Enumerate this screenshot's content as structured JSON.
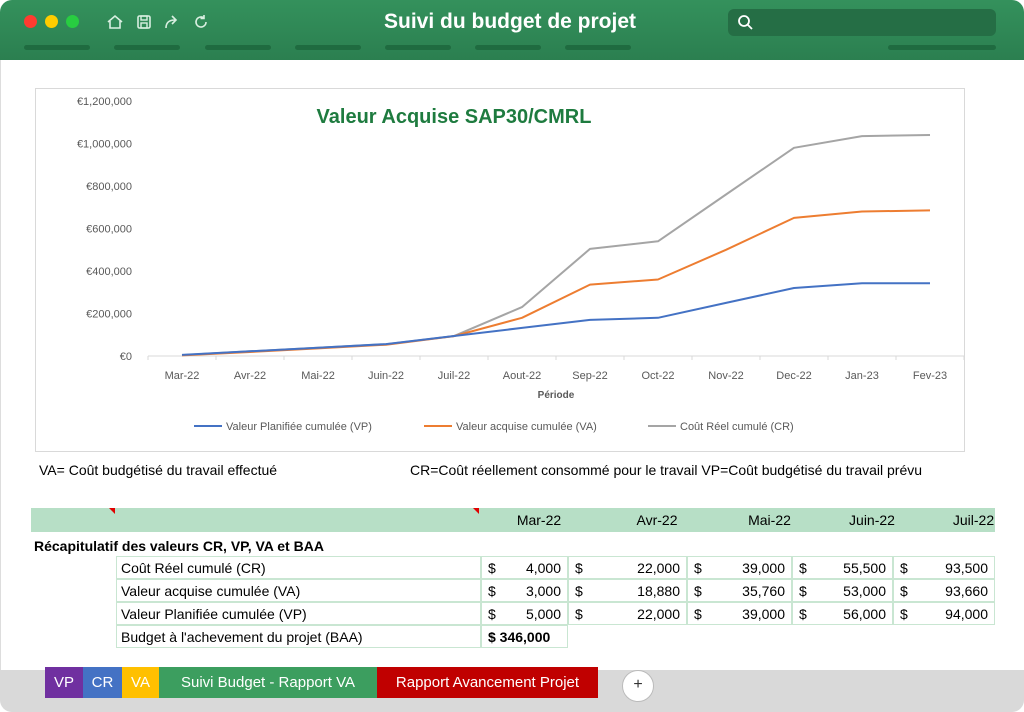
{
  "window": {
    "title": "Suivi du budget de projet",
    "search": {
      "placeholder": ""
    }
  },
  "chart_data": {
    "type": "line",
    "title": "Valeur Acquise SAP30/CMRL",
    "xlabel": "Période",
    "ylabel": "",
    "categories": [
      "Mar-22",
      "Avr-22",
      "Mai-22",
      "Juin-22",
      "Juil-22",
      "Aout-22",
      "Sep-22",
      "Oct-22",
      "Nov-22",
      "Dec-22",
      "Jan-23",
      "Fev-23"
    ],
    "y_ticks": [
      "€0",
      "€200,000",
      "€400,000",
      "€600,000",
      "€800,000",
      "€1,000,000",
      "€1,200,000"
    ],
    "ylim": [
      0,
      1200000
    ],
    "grid": false,
    "legend_position": "bottom",
    "series": [
      {
        "name": "Valeur Planifiée cumulée (VP)",
        "color": "#4472c4",
        "values": [
          5000,
          22000,
          39000,
          56000,
          94000,
          132000,
          170000,
          180000,
          250000,
          320000,
          342000,
          342000
        ]
      },
      {
        "name": "Valeur acquise cumulée (VA)",
        "color": "#ed7d31",
        "values": [
          3000,
          18880,
          35760,
          53000,
          93660,
          180000,
          336000,
          360000,
          500000,
          650000,
          680000,
          685000
        ]
      },
      {
        "name": "Coût Réel cumulé  (CR)",
        "color": "#a5a5a5",
        "values": [
          4000,
          22000,
          39000,
          55500,
          93500,
          230000,
          504000,
          540000,
          760000,
          980000,
          1035000,
          1040000
        ]
      }
    ]
  },
  "notes": {
    "va": "VA= Coût budgétisé du travail effectué",
    "cr_vp": "CR=Coût réellement consommé pour le travail  VP=Coût budgétisé du travail prévu"
  },
  "table": {
    "months": [
      "Mar-22",
      "Avr-22",
      "Mai-22",
      "Juin-22",
      "Juil-22"
    ],
    "summary_title": "Récapitulatif des valeurs CR, VP, VA et BAA",
    "currency": "$",
    "rows": [
      {
        "label": "Coût Réel cumulé  (CR)",
        "values": [
          "4,000",
          "22,000",
          "39,000",
          "55,500",
          "93,500"
        ]
      },
      {
        "label": "Valeur acquise cumulée (VA)",
        "values": [
          "3,000",
          "18,880",
          "35,760",
          "53,000",
          "93,660"
        ]
      },
      {
        "label": "Valeur Planifiée cumulée (VP)",
        "values": [
          "5,000",
          "22,000",
          "39,000",
          "56,000",
          "94,000"
        ]
      }
    ],
    "baa": {
      "label": "Budget à l'achevement du projet (BAA)",
      "value": "$ 346,000"
    }
  },
  "tabs": [
    {
      "label": "VP",
      "color": "#7030a0"
    },
    {
      "label": "CR",
      "color": "#4472c4"
    },
    {
      "label": "VA",
      "color": "#ffc000"
    },
    {
      "label": "Suivi Budget - Rapport VA",
      "color": "#3c9e5f"
    },
    {
      "label": "Rapport Avancement Projet",
      "color": "#c00000"
    }
  ],
  "add_tab_label": "+"
}
